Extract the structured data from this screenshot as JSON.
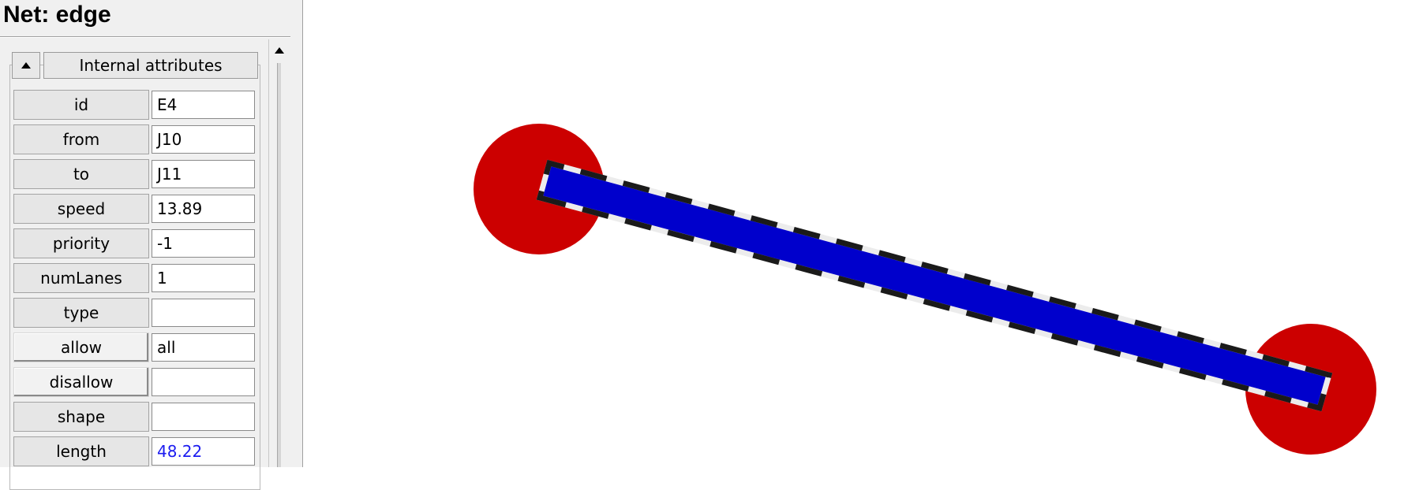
{
  "panel": {
    "title": "Net: edge",
    "group_title": "Internal attributes",
    "collapse_icon": "triangle-up-icon",
    "attributes": [
      {
        "name": "id",
        "value": "E4"
      },
      {
        "name": "from",
        "value": "J10"
      },
      {
        "name": "to",
        "value": "J11"
      },
      {
        "name": "speed",
        "value": "13.89"
      },
      {
        "name": "priority",
        "value": "-1"
      },
      {
        "name": "numLanes",
        "value": "1"
      },
      {
        "name": "type",
        "value": ""
      },
      {
        "name": "allow",
        "value": "all"
      },
      {
        "name": "disallow",
        "value": ""
      },
      {
        "name": "shape",
        "value": ""
      },
      {
        "name": "length",
        "value": "48.22"
      }
    ]
  },
  "colors": {
    "junction": "#cc0000",
    "lane": "#0000cc",
    "computed_value": "#1c1cf0"
  },
  "canvas": {
    "edge_id": "E4",
    "from_junction": "J10",
    "to_junction": "J11"
  }
}
